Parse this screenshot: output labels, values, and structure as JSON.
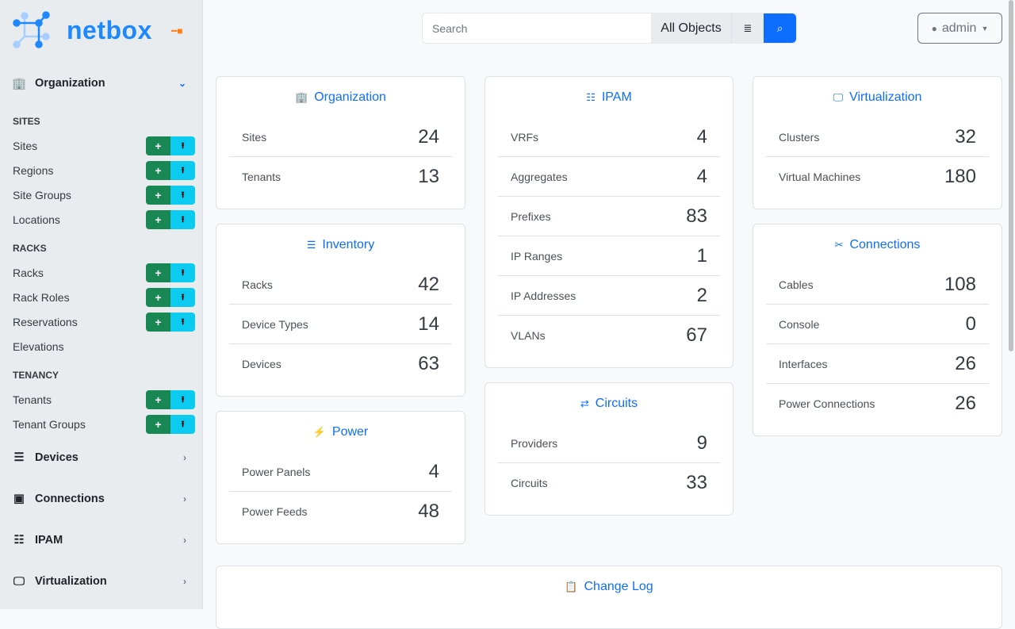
{
  "brand": {
    "name": "netbox"
  },
  "sidebar": {
    "groups": [
      {
        "label": "Organization",
        "icon": "building-icon",
        "expanded": true,
        "sections": [
          {
            "heading": "SITES",
            "items": [
              {
                "label": "Sites",
                "buttons": true
              },
              {
                "label": "Regions",
                "buttons": true
              },
              {
                "label": "Site Groups",
                "buttons": true
              },
              {
                "label": "Locations",
                "buttons": true
              }
            ]
          },
          {
            "heading": "RACKS",
            "items": [
              {
                "label": "Racks",
                "buttons": true
              },
              {
                "label": "Rack Roles",
                "buttons": true
              },
              {
                "label": "Reservations",
                "buttons": true
              },
              {
                "label": "Elevations",
                "buttons": false
              }
            ]
          },
          {
            "heading": "TENANCY",
            "items": [
              {
                "label": "Tenants",
                "buttons": true
              },
              {
                "label": "Tenant Groups",
                "buttons": true
              }
            ]
          }
        ]
      },
      {
        "label": "Devices",
        "icon": "server-icon",
        "expanded": false
      },
      {
        "label": "Connections",
        "icon": "ethernet-icon",
        "expanded": false
      },
      {
        "label": "IPAM",
        "icon": "numeric-icon",
        "expanded": false
      },
      {
        "label": "Virtualization",
        "icon": "monitor-icon",
        "expanded": false
      }
    ]
  },
  "topbar": {
    "search_placeholder": "Search",
    "search_value": "",
    "object_selector": "All Objects",
    "user": "admin"
  },
  "columns": [
    [
      {
        "title": "Organization",
        "icon": "building-icon",
        "rows": [
          {
            "label": "Sites",
            "value": "24"
          },
          {
            "label": "Tenants",
            "value": "13"
          }
        ]
      },
      {
        "title": "Inventory",
        "icon": "server-icon",
        "rows": [
          {
            "label": "Racks",
            "value": "42"
          },
          {
            "label": "Device Types",
            "value": "14"
          },
          {
            "label": "Devices",
            "value": "63"
          }
        ]
      },
      {
        "title": "Power",
        "icon": "flash-icon",
        "rows": [
          {
            "label": "Power Panels",
            "value": "4"
          },
          {
            "label": "Power Feeds",
            "value": "48"
          }
        ]
      }
    ],
    [
      {
        "title": "IPAM",
        "icon": "numeric-icon",
        "rows": [
          {
            "label": "VRFs",
            "value": "4"
          },
          {
            "label": "Aggregates",
            "value": "4"
          },
          {
            "label": "Prefixes",
            "value": "83"
          },
          {
            "label": "IP Ranges",
            "value": "1"
          },
          {
            "label": "IP Addresses",
            "value": "2"
          },
          {
            "label": "VLANs",
            "value": "67"
          }
        ]
      },
      {
        "title": "Circuits",
        "icon": "transit-icon",
        "rows": [
          {
            "label": "Providers",
            "value": "9"
          },
          {
            "label": "Circuits",
            "value": "33"
          }
        ]
      }
    ],
    [
      {
        "title": "Virtualization",
        "icon": "monitor-icon",
        "rows": [
          {
            "label": "Clusters",
            "value": "32"
          },
          {
            "label": "Virtual Machines",
            "value": "180"
          }
        ]
      },
      {
        "title": "Connections",
        "icon": "cable-icon",
        "rows": [
          {
            "label": "Cables",
            "value": "108"
          },
          {
            "label": "Console",
            "value": "0"
          },
          {
            "label": "Interfaces",
            "value": "26"
          },
          {
            "label": "Power Connections",
            "value": "26"
          }
        ]
      }
    ]
  ],
  "changelog": {
    "title": "Change Log",
    "icon": "clipboard-clock-icon"
  }
}
